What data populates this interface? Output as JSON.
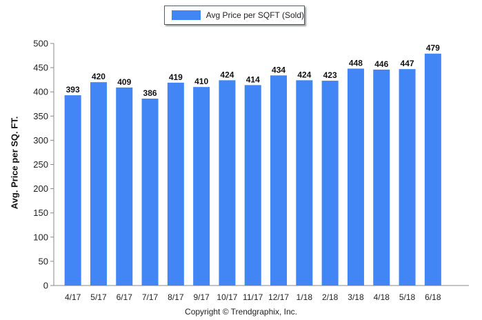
{
  "chart_data": {
    "type": "bar",
    "categories": [
      "4/17",
      "5/17",
      "6/17",
      "7/17",
      "8/17",
      "9/17",
      "10/17",
      "11/17",
      "12/17",
      "1/18",
      "2/18",
      "3/18",
      "4/18",
      "5/18",
      "6/18"
    ],
    "values": [
      393,
      420,
      409,
      386,
      419,
      410,
      424,
      414,
      434,
      424,
      423,
      448,
      446,
      447,
      479
    ],
    "legend": "Avg Price per SQFT (Sold)",
    "ylabel": "Avg. Price per SQ. FT.",
    "ylim": [
      0,
      500
    ],
    "yticks": [
      0,
      50,
      100,
      150,
      200,
      250,
      300,
      350,
      400,
      450,
      500
    ],
    "color": "#4285f4",
    "grid": false,
    "legend_position": "top-center"
  },
  "footer": {
    "copyright": "Copyright © Trendgraphix, Inc."
  }
}
